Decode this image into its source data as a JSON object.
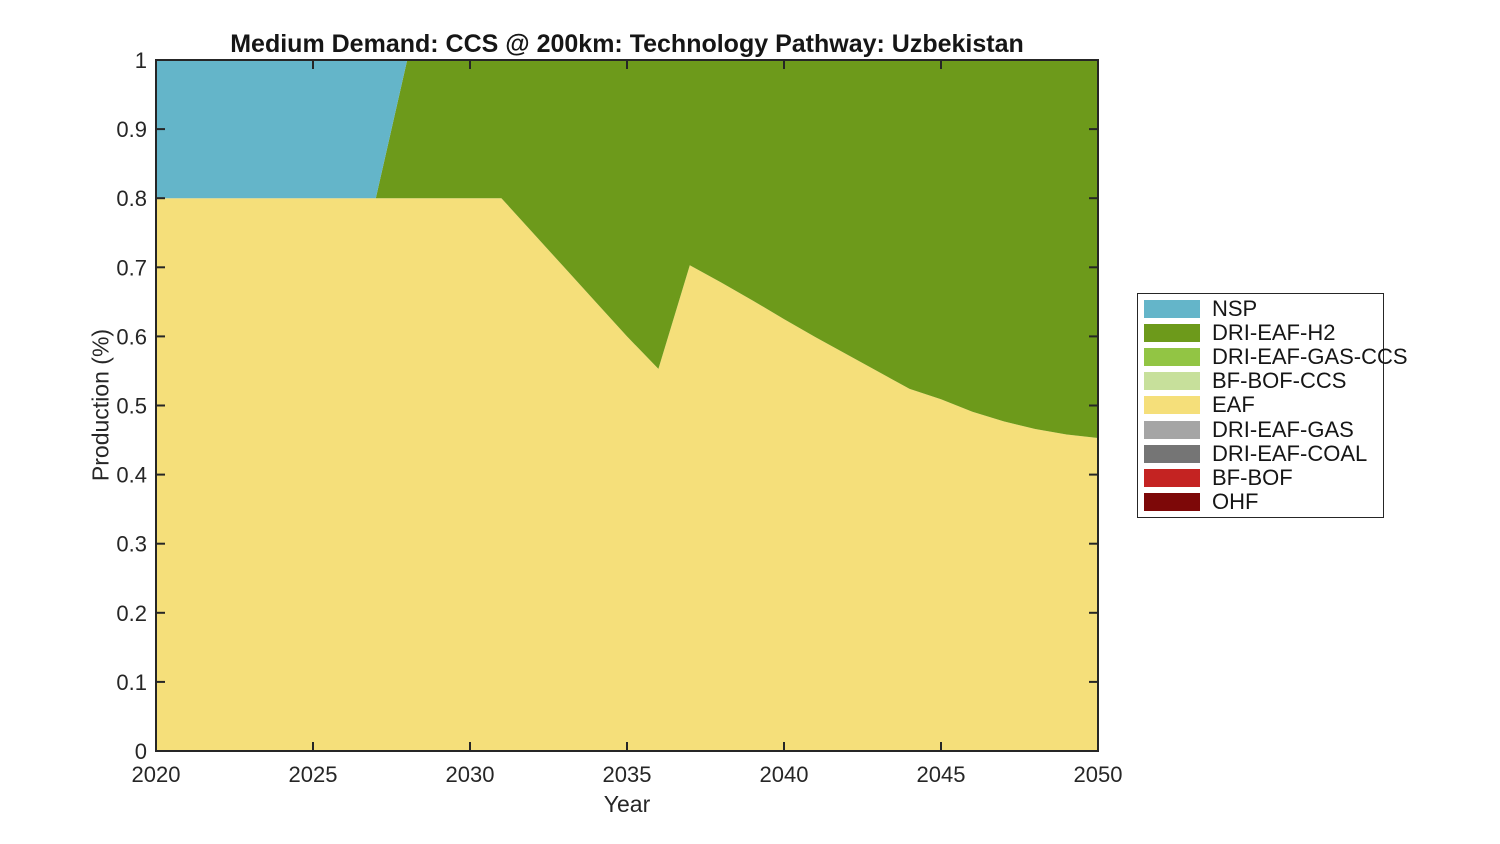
{
  "chart_data": {
    "type": "area",
    "stacked": true,
    "title": "Medium Demand: CCS @ 200km: Technology Pathway: Uzbekistan",
    "xlabel": "Year",
    "ylabel": "Production (%)",
    "xlim": [
      2020,
      2050
    ],
    "ylim": [
      0,
      1
    ],
    "xticks": [
      2020,
      2025,
      2030,
      2035,
      2040,
      2045,
      2050
    ],
    "yticks": [
      0,
      0.1,
      0.2,
      0.3,
      0.4,
      0.5,
      0.6,
      0.7,
      0.8,
      0.9,
      1
    ],
    "ytick_labels": [
      "0",
      "0.1",
      "0.2",
      "0.3",
      "0.4",
      "0.5",
      "0.6",
      "0.7",
      "0.8",
      "0.9",
      "1"
    ],
    "grid": false,
    "legend_position": "right-outside",
    "axis_color": "#262626",
    "text_color": "#262626",
    "background_color": "#ffffff",
    "x": [
      2020,
      2021,
      2022,
      2023,
      2024,
      2025,
      2026,
      2027,
      2028,
      2029,
      2030,
      2031,
      2032,
      2033,
      2034,
      2035,
      2036,
      2037,
      2038,
      2039,
      2040,
      2041,
      2042,
      2043,
      2044,
      2045,
      2046,
      2047,
      2048,
      2049,
      2050
    ],
    "series": [
      {
        "name": "NSP",
        "color": "#64B5C9",
        "values": [
          0.2,
          0.2,
          0.2,
          0.2,
          0.2,
          0.2,
          0.2,
          0.2,
          0,
          0,
          0,
          0,
          0,
          0,
          0,
          0,
          0,
          0,
          0,
          0,
          0,
          0,
          0,
          0,
          0,
          0,
          0,
          0,
          0,
          0,
          0
        ]
      },
      {
        "name": "DRI-EAF-H2",
        "color": "#6D9A1B",
        "values": [
          0,
          0,
          0,
          0,
          0,
          0,
          0,
          0,
          0.2,
          0.2,
          0.2,
          0.2,
          0.25,
          0.3,
          0.35,
          0.4,
          0.447,
          0.297,
          0.322,
          0.348,
          0.375,
          0.401,
          0.426,
          0.451,
          0.476,
          0.491,
          0.509,
          0.523,
          0.534,
          0.542,
          0.547
        ]
      },
      {
        "name": "DRI-EAF-GAS-CCS",
        "color": "#92C544",
        "values": [
          0,
          0,
          0,
          0,
          0,
          0,
          0,
          0,
          0,
          0,
          0,
          0,
          0,
          0,
          0,
          0,
          0,
          0,
          0,
          0,
          0,
          0,
          0,
          0,
          0,
          0,
          0,
          0,
          0,
          0,
          0
        ]
      },
      {
        "name": "BF-BOF-CCS",
        "color": "#C7E09B",
        "values": [
          0,
          0,
          0,
          0,
          0,
          0,
          0,
          0,
          0,
          0,
          0,
          0,
          0,
          0,
          0,
          0,
          0,
          0,
          0,
          0,
          0,
          0,
          0,
          0,
          0,
          0,
          0,
          0,
          0,
          0,
          0
        ]
      },
      {
        "name": "EAF",
        "color": "#F5DF7A",
        "values": [
          0.8,
          0.8,
          0.8,
          0.8,
          0.8,
          0.8,
          0.8,
          0.8,
          0.8,
          0.8,
          0.8,
          0.8,
          0.75,
          0.7,
          0.65,
          0.6,
          0.553,
          0.703,
          0.678,
          0.652,
          0.625,
          0.599,
          0.574,
          0.549,
          0.524,
          0.509,
          0.491,
          0.477,
          0.466,
          0.458,
          0.453
        ]
      },
      {
        "name": "DRI-EAF-GAS",
        "color": "#A5A5A5",
        "values": [
          0,
          0,
          0,
          0,
          0,
          0,
          0,
          0,
          0,
          0,
          0,
          0,
          0,
          0,
          0,
          0,
          0,
          0,
          0,
          0,
          0,
          0,
          0,
          0,
          0,
          0,
          0,
          0,
          0,
          0,
          0
        ]
      },
      {
        "name": "DRI-EAF-COAL",
        "color": "#757575",
        "values": [
          0,
          0,
          0,
          0,
          0,
          0,
          0,
          0,
          0,
          0,
          0,
          0,
          0,
          0,
          0,
          0,
          0,
          0,
          0,
          0,
          0,
          0,
          0,
          0,
          0,
          0,
          0,
          0,
          0,
          0,
          0
        ]
      },
      {
        "name": "BF-BOF",
        "color": "#C42322",
        "values": [
          0,
          0,
          0,
          0,
          0,
          0,
          0,
          0,
          0,
          0,
          0,
          0,
          0,
          0,
          0,
          0,
          0,
          0,
          0,
          0,
          0,
          0,
          0,
          0,
          0,
          0,
          0,
          0,
          0,
          0,
          0
        ]
      },
      {
        "name": "OHF",
        "color": "#7D0808",
        "values": [
          0,
          0,
          0,
          0,
          0,
          0,
          0,
          0,
          0,
          0,
          0,
          0,
          0,
          0,
          0,
          0,
          0,
          0,
          0,
          0,
          0,
          0,
          0,
          0,
          0,
          0,
          0,
          0,
          0,
          0,
          0
        ]
      }
    ],
    "stack_order_bottom_to_top": [
      "OHF",
      "BF-BOF",
      "DRI-EAF-COAL",
      "DRI-EAF-GAS",
      "EAF",
      "BF-BOF-CCS",
      "DRI-EAF-GAS-CCS",
      "DRI-EAF-H2",
      "NSP"
    ]
  }
}
